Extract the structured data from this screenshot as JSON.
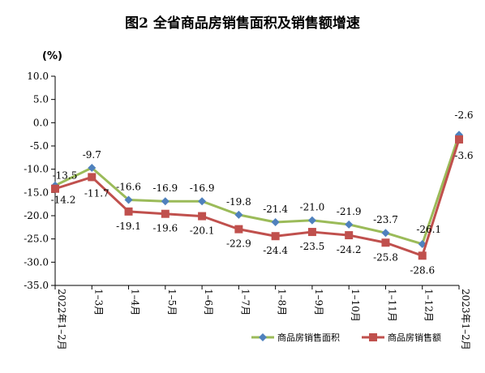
{
  "chart_data": {
    "type": "line",
    "title": "图2 全省商品房销售面积及销售额增速",
    "unit_label": "(%)",
    "categories": [
      "2022年1–2月",
      "1–3月",
      "1–4月",
      "1–5月",
      "1–6月",
      "1–7月",
      "1–8月",
      "1–9月",
      "1–10月",
      "1–11月",
      "1–12月",
      "2023年1–2月"
    ],
    "ylim": [
      -35.0,
      10.0
    ],
    "yticks": [
      "10.0",
      "5.0",
      "0.0",
      "-5.0",
      "-10.0",
      "-15.0",
      "-20.0",
      "-25.0",
      "-30.0",
      "-35.0"
    ],
    "ytick_values": [
      10,
      5,
      0,
      -5,
      -10,
      -15,
      -20,
      -25,
      -30,
      -35
    ],
    "series": [
      {
        "name": "商品房销售面积",
        "color": "#9bbb59",
        "marker": "diamond",
        "marker_color": "#4f81bd",
        "values": [
          -13.5,
          -9.7,
          -16.6,
          -16.9,
          -16.9,
          -19.8,
          -21.4,
          -21.0,
          -21.9,
          -23.7,
          -26.1,
          -2.6
        ],
        "labels": [
          "-13.5",
          "-9.7",
          "-16.6",
          "-16.9",
          "-16.9",
          "-19.8",
          "-21.4",
          "-21.0",
          "-21.9",
          "-23.7",
          "-26.1",
          "-2.6"
        ]
      },
      {
        "name": "商品房销售额",
        "color": "#c0504d",
        "marker": "square",
        "marker_color": "#c0504d",
        "values": [
          -14.2,
          -11.7,
          -19.1,
          -19.6,
          -20.1,
          -22.9,
          -24.4,
          -23.5,
          -24.2,
          -25.8,
          -28.6,
          -3.6
        ],
        "labels": [
          "-14.2",
          "-11.7",
          "-19.1",
          "-19.6",
          "-20.1",
          "-22.9",
          "-24.4",
          "-23.5",
          "-24.2",
          "-25.8",
          "-28.6",
          "-3.6"
        ]
      }
    ],
    "grid": false,
    "legend": "bottom-right"
  }
}
